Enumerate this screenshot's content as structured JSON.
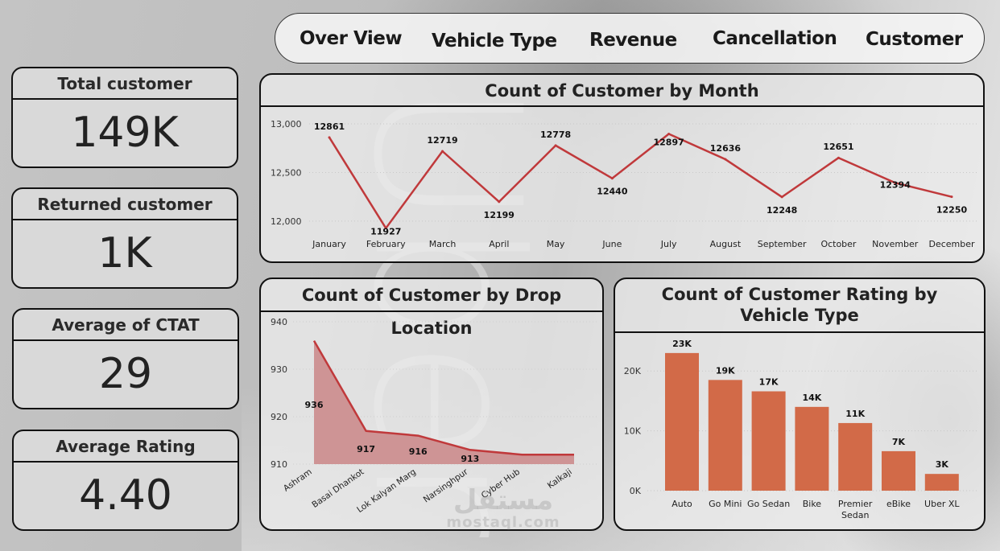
{
  "nav": {
    "items": [
      {
        "label": "Over View"
      },
      {
        "label": "Vehicle Type"
      },
      {
        "label": "Revenue"
      },
      {
        "label": "Cancellation"
      },
      {
        "label": "Customer"
      }
    ]
  },
  "kpis": [
    {
      "title": "Total customer",
      "value": "149K"
    },
    {
      "title": "Returned customer",
      "value": "1K"
    },
    {
      "title": "Average of CTAT",
      "value": "29"
    },
    {
      "title": "Average Rating",
      "value": "4.40"
    }
  ],
  "watermark": {
    "arabic": "مستقل",
    "latin": "mostaql.com"
  },
  "background": {
    "logo_text": "Uber"
  },
  "colors": {
    "line": "#c0393b",
    "area_fill": "#cc8f90",
    "bar": "#d26a48",
    "panel_border": "#111111"
  },
  "chart_data": [
    {
      "type": "line",
      "title": "Count of Customer by Month",
      "categories": [
        "January",
        "February",
        "March",
        "April",
        "May",
        "June",
        "July",
        "August",
        "September",
        "October",
        "November",
        "December"
      ],
      "values": [
        12861,
        11927,
        12719,
        12199,
        12778,
        12440,
        12897,
        12636,
        12248,
        12651,
        12394,
        12250
      ],
      "data_labels": [
        "12861",
        "11927",
        "12719",
        "12199",
        "12778",
        "12440",
        "12897",
        "12636",
        "12248",
        "12651",
        "12394",
        "12250"
      ],
      "yticks": [
        12000,
        12500,
        13000
      ],
      "ytick_labels": [
        "12,000",
        "12,500",
        "13,000"
      ],
      "ylim": [
        11850,
        13050
      ],
      "grid": true,
      "xlabel": "",
      "ylabel": ""
    },
    {
      "type": "area",
      "title": "Count of Customer by Drop Location",
      "categories": [
        "Ashram",
        "Basai Dhankot",
        "Lok Kalyan Marg",
        "Narsinghpur",
        "Cyber Hub",
        "Kalkaji"
      ],
      "values": [
        936,
        917,
        916,
        913,
        912,
        912
      ],
      "data_labels": [
        "936",
        "917",
        "916",
        "913",
        "",
        ""
      ],
      "yticks": [
        910,
        920,
        930,
        940
      ],
      "ytick_labels": [
        "910",
        "920",
        "930",
        "940"
      ],
      "ylim": [
        910,
        940
      ],
      "grid": true,
      "xlabel": "",
      "ylabel": ""
    },
    {
      "type": "bar",
      "title": "Count of Customer Rating by Vehicle Type",
      "categories": [
        "Auto",
        "Go Mini",
        "Go Sedan",
        "Bike",
        "Premier Sedan",
        "eBike",
        "Uber XL"
      ],
      "values": [
        23000,
        18500,
        16600,
        14000,
        11300,
        6600,
        2800
      ],
      "data_labels": [
        "23K",
        "19K",
        "17K",
        "14K",
        "11K",
        "7K",
        "3K"
      ],
      "yticks": [
        0,
        10000,
        20000
      ],
      "ytick_labels": [
        "0K",
        "10K",
        "20K"
      ],
      "ylim": [
        0,
        25000
      ],
      "grid": true,
      "xlabel": "",
      "ylabel": ""
    }
  ]
}
